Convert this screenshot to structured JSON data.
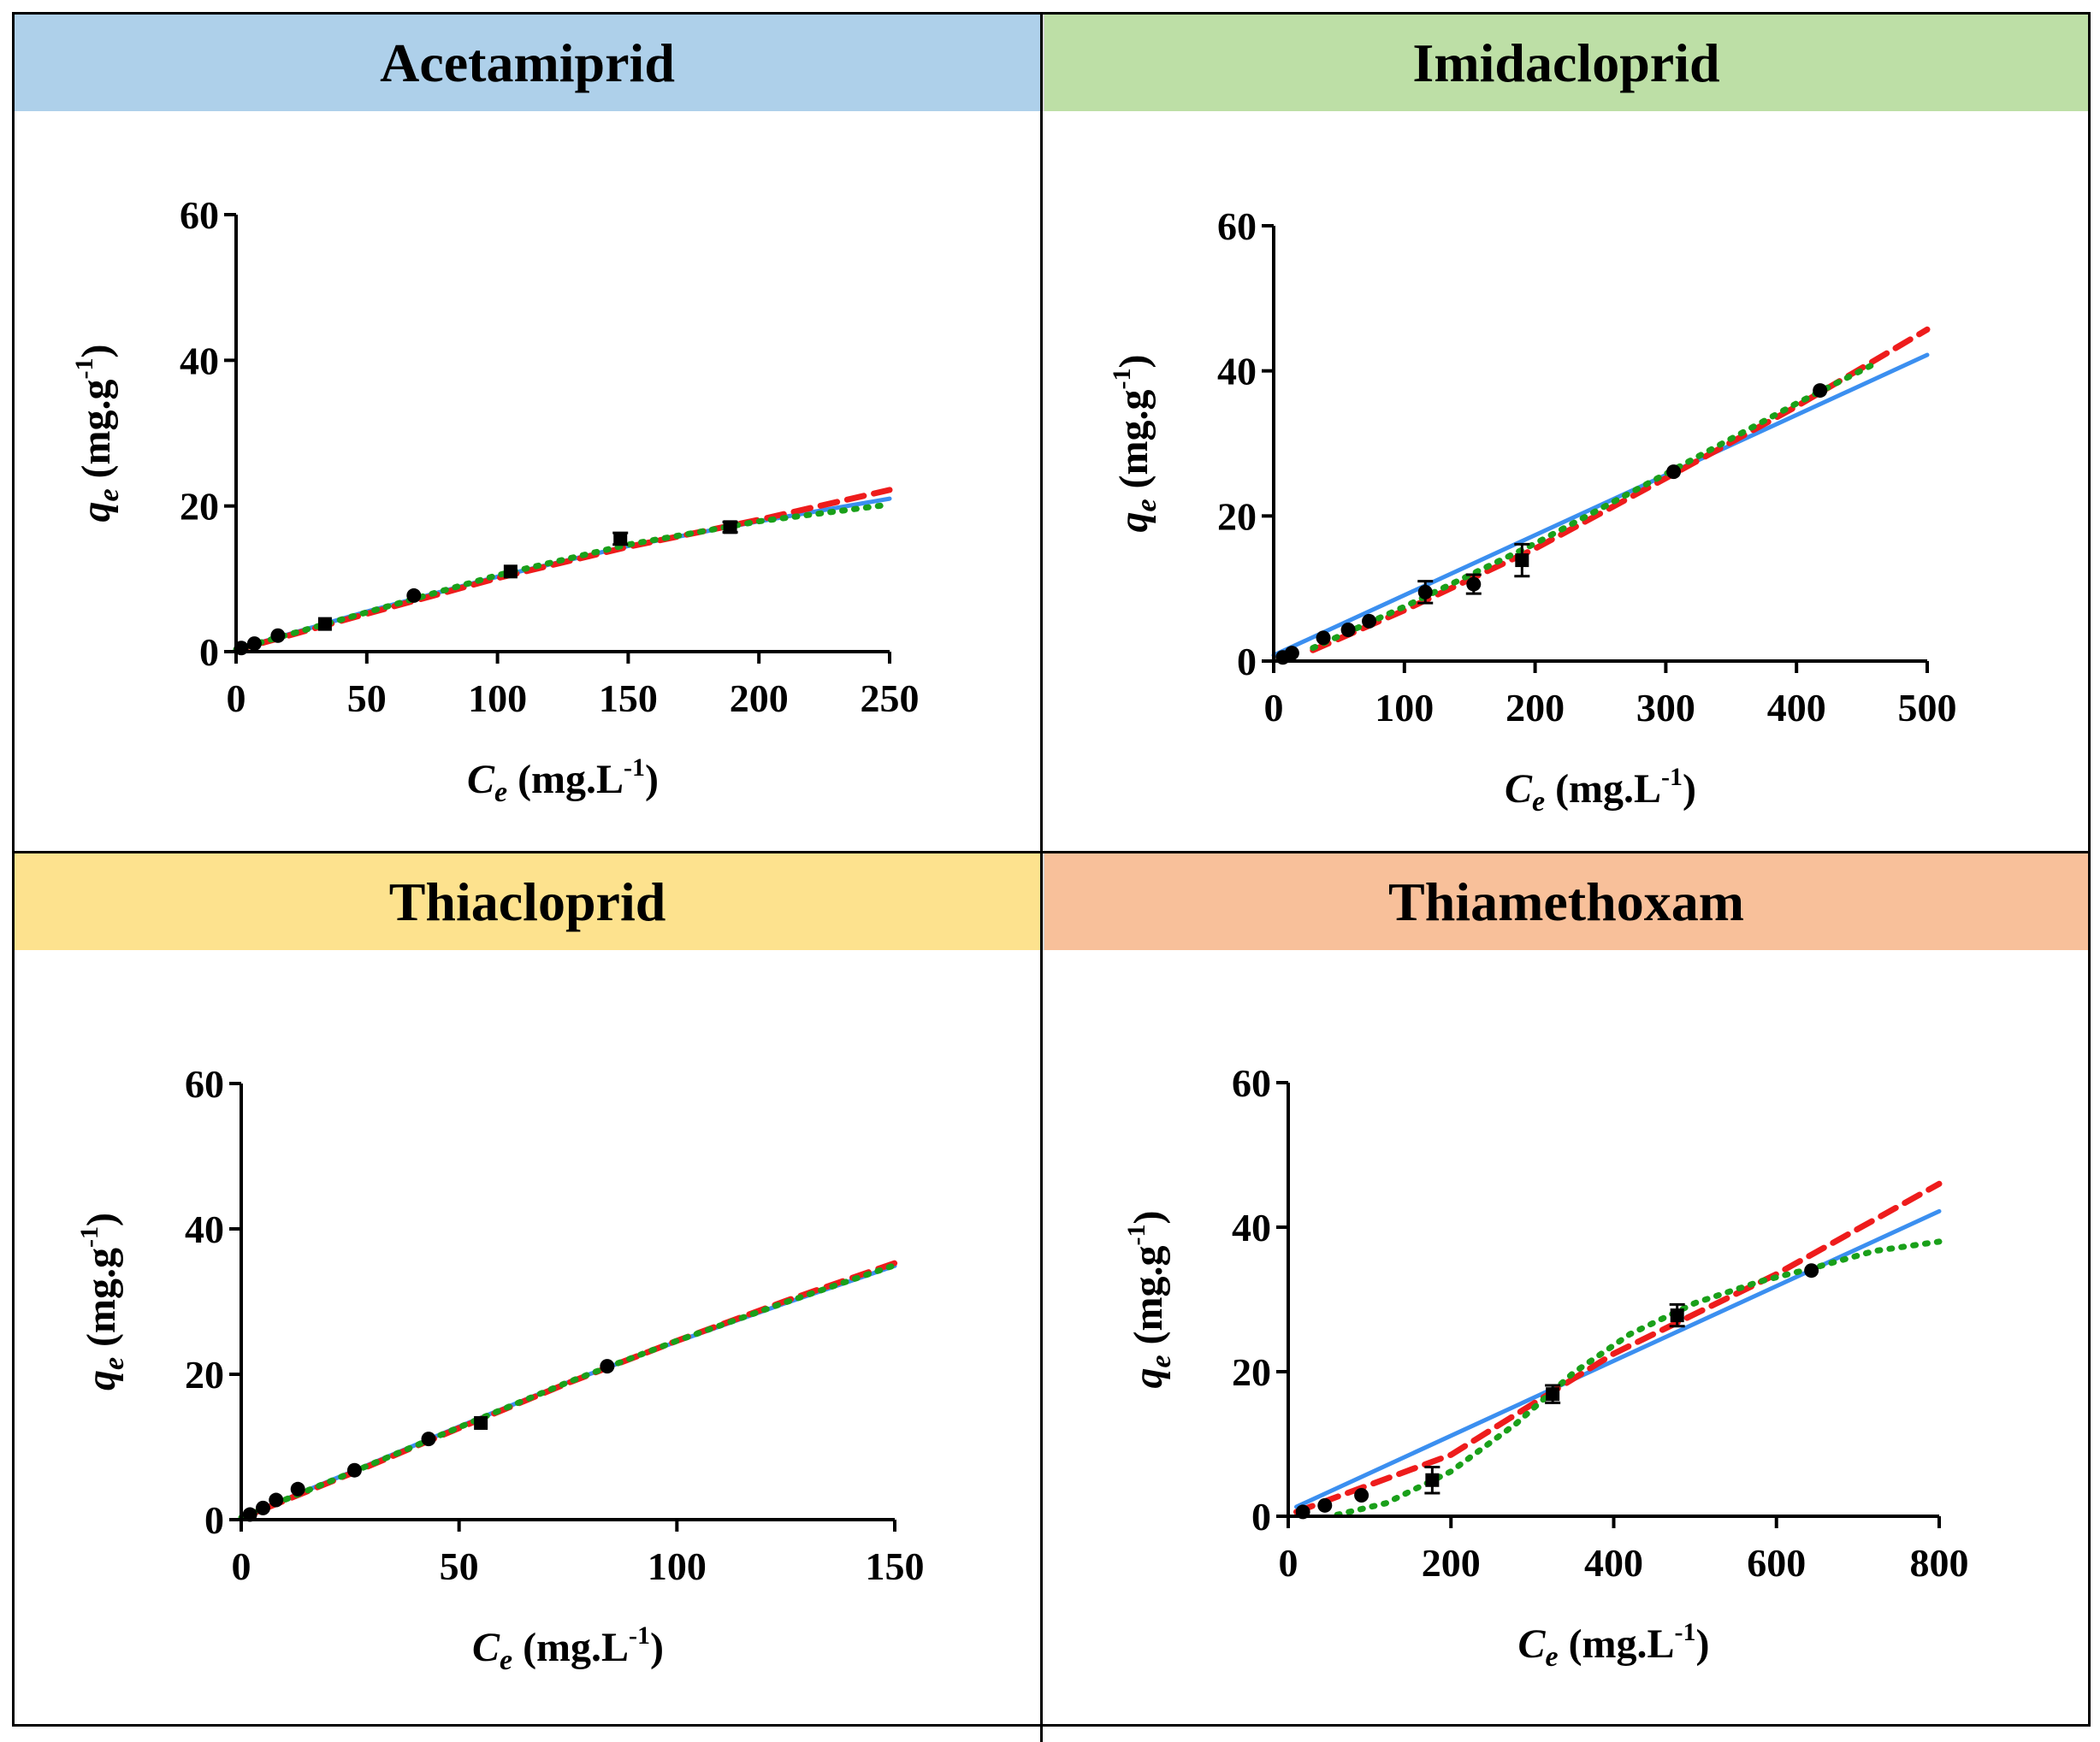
{
  "panels": [
    {
      "title": "Acetamiprid",
      "header_color": "#aed0ea"
    },
    {
      "title": "Imidacloprid",
      "header_color": "#bddfa6"
    },
    {
      "title": "Thiacloprid",
      "header_color": "#fde28e"
    },
    {
      "title": "Thiamethoxam",
      "header_color": "#f8c09a"
    }
  ],
  "line_colors": {
    "solid": "#3b8ff0",
    "dashed": "#ee1c1c",
    "dotted": "#1aa01a"
  },
  "marker_color": "#000000",
  "chart_data": [
    {
      "type": "scatter",
      "title": "Acetamiprid",
      "xlabel_main": "C",
      "xlabel_sub": "e",
      "xlabel_unit": " (mg.L",
      "xlabel_exp": "-1",
      "xlabel_close": ")",
      "ylabel_main": "q",
      "ylabel_sub": "e",
      "ylabel_unit": " (mg.g",
      "ylabel_exp": "-1",
      "ylabel_close": ")",
      "xlim": [
        0,
        250
      ],
      "ylim": [
        0,
        60
      ],
      "xticks": [
        0,
        50,
        100,
        150,
        200,
        250
      ],
      "yticks": [
        0,
        20,
        40,
        60
      ],
      "points": [
        {
          "x": 2,
          "y": 0.5,
          "err": 0,
          "marker": "circle"
        },
        {
          "x": 7,
          "y": 1.1,
          "err": 0,
          "marker": "circle"
        },
        {
          "x": 16,
          "y": 2.2,
          "err": 0,
          "marker": "circle"
        },
        {
          "x": 34,
          "y": 3.8,
          "err": 0,
          "marker": "square"
        },
        {
          "x": 68,
          "y": 7.7,
          "err": 0,
          "marker": "circle"
        },
        {
          "x": 105,
          "y": 11.0,
          "err": 0,
          "marker": "square"
        },
        {
          "x": 147,
          "y": 15.5,
          "err": 0.8,
          "marker": "square"
        },
        {
          "x": 189,
          "y": 17.1,
          "err": 0.7,
          "marker": "square"
        }
      ],
      "series": [
        {
          "style": "solid",
          "x": [
            0,
            50,
            100,
            150,
            200,
            250
          ],
          "y": [
            0.3,
            5.5,
            10.3,
            14.5,
            17.9,
            21.0
          ]
        },
        {
          "style": "dashed",
          "x": [
            0,
            50,
            100,
            150,
            200,
            250
          ],
          "y": [
            0.2,
            5.2,
            10.1,
            14.4,
            18.1,
            22.2
          ]
        },
        {
          "style": "dotted",
          "x": [
            0,
            50,
            100,
            150,
            200,
            250
          ],
          "y": [
            0.3,
            5.4,
            10.5,
            14.7,
            17.9,
            20.2
          ]
        }
      ]
    },
    {
      "type": "scatter",
      "title": "Imidacloprid",
      "xlabel_main": "C",
      "xlabel_sub": "e",
      "xlabel_unit": " (mg.L",
      "xlabel_exp": "-1",
      "xlabel_close": ")",
      "ylabel_main": "q",
      "ylabel_sub": "e",
      "ylabel_unit": " (mg.g",
      "ylabel_exp": "-1",
      "ylabel_close": ")",
      "xlim": [
        0,
        500
      ],
      "ylim": [
        0,
        60
      ],
      "xticks": [
        0,
        100,
        200,
        300,
        400,
        500
      ],
      "yticks": [
        0,
        20,
        40,
        60
      ],
      "points": [
        {
          "x": 7,
          "y": 0.5,
          "err": 0,
          "marker": "circle"
        },
        {
          "x": 14,
          "y": 1.1,
          "err": 0,
          "marker": "circle"
        },
        {
          "x": 38,
          "y": 3.2,
          "err": 0,
          "marker": "circle"
        },
        {
          "x": 57,
          "y": 4.3,
          "err": 0,
          "marker": "circle"
        },
        {
          "x": 73,
          "y": 5.5,
          "err": 0,
          "marker": "circle"
        },
        {
          "x": 116,
          "y": 9.5,
          "err": 1.5,
          "marker": "circle"
        },
        {
          "x": 153,
          "y": 10.6,
          "err": 1.3,
          "marker": "circle"
        },
        {
          "x": 190,
          "y": 13.9,
          "err": 2.2,
          "marker": "square"
        },
        {
          "x": 306,
          "y": 26.1,
          "err": 0,
          "marker": "circle"
        },
        {
          "x": 418,
          "y": 37.3,
          "err": 0,
          "marker": "circle"
        }
      ],
      "series": [
        {
          "style": "solid",
          "x": [
            0,
            500
          ],
          "y": [
            0.8,
            42.2
          ]
        },
        {
          "style": "dashed",
          "x": [
            30,
            100,
            200,
            300,
            400,
            500
          ],
          "y": [
            1.5,
            7.0,
            15.5,
            25.2,
            35.1,
            45.7
          ]
        },
        {
          "style": "dotted",
          "x": [
            30,
            100,
            200,
            300,
            400,
            460
          ],
          "y": [
            1.8,
            7.5,
            16.2,
            25.8,
            35.5,
            41.0
          ]
        }
      ]
    },
    {
      "type": "scatter",
      "title": "Thiacloprid",
      "xlabel_main": "C",
      "xlabel_sub": "e",
      "xlabel_unit": " (mg.L",
      "xlabel_exp": "-1",
      "xlabel_close": ")",
      "ylabel_main": "q",
      "ylabel_sub": "e",
      "ylabel_unit": " (mg.g",
      "ylabel_exp": "-1",
      "ylabel_close": ")",
      "xlim": [
        0,
        150
      ],
      "ylim": [
        0,
        60
      ],
      "xticks": [
        0,
        50,
        100,
        150
      ],
      "yticks": [
        0,
        20,
        40,
        60
      ],
      "points": [
        {
          "x": 2,
          "y": 0.7,
          "err": 0,
          "marker": "circle"
        },
        {
          "x": 5,
          "y": 1.6,
          "err": 0,
          "marker": "circle"
        },
        {
          "x": 8,
          "y": 2.7,
          "err": 0,
          "marker": "circle"
        },
        {
          "x": 13,
          "y": 4.2,
          "err": 0,
          "marker": "circle"
        },
        {
          "x": 26,
          "y": 6.8,
          "err": 0,
          "marker": "circle"
        },
        {
          "x": 43,
          "y": 11.1,
          "err": 0,
          "marker": "circle"
        },
        {
          "x": 55,
          "y": 13.3,
          "err": 0,
          "marker": "square"
        },
        {
          "x": 84,
          "y": 21.1,
          "err": 0,
          "marker": "circle"
        }
      ],
      "series": [
        {
          "style": "solid",
          "x": [
            0,
            25,
            50,
            75,
            100,
            125,
            150
          ],
          "y": [
            0.3,
            6.5,
            12.8,
            18.9,
            24.5,
            29.8,
            34.9
          ]
        },
        {
          "style": "dashed",
          "x": [
            0,
            25,
            50,
            75,
            100,
            125,
            150
          ],
          "y": [
            0.2,
            6.3,
            12.6,
            18.8,
            24.6,
            30.1,
            35.3
          ]
        },
        {
          "style": "dotted",
          "x": [
            0,
            25,
            50,
            75,
            100,
            125,
            150
          ],
          "y": [
            0.3,
            6.4,
            12.7,
            18.9,
            24.6,
            29.9,
            35.0
          ]
        }
      ]
    },
    {
      "type": "scatter",
      "title": "Thiamethoxam",
      "xlabel_main": "C",
      "xlabel_sub": "e",
      "xlabel_unit": " (mg.L",
      "xlabel_exp": "-1",
      "xlabel_close": ")",
      "ylabel_main": "q",
      "ylabel_sub": "e",
      "ylabel_unit": " (mg.g",
      "ylabel_exp": "-1",
      "ylabel_close": ")",
      "xlim": [
        0,
        800
      ],
      "ylim": [
        0,
        60
      ],
      "xticks": [
        0,
        200,
        400,
        600,
        800
      ],
      "yticks": [
        0,
        20,
        40,
        60
      ],
      "points": [
        {
          "x": 18,
          "y": 0.6,
          "err": 0,
          "marker": "circle"
        },
        {
          "x": 45,
          "y": 1.5,
          "err": 0,
          "marker": "circle"
        },
        {
          "x": 90,
          "y": 2.9,
          "err": 0,
          "marker": "circle"
        },
        {
          "x": 177,
          "y": 5.0,
          "err": 1.8,
          "marker": "square"
        },
        {
          "x": 325,
          "y": 16.9,
          "err": 1.2,
          "marker": "square"
        },
        {
          "x": 478,
          "y": 27.8,
          "err": 1.5,
          "marker": "square"
        },
        {
          "x": 643,
          "y": 34.0,
          "err": 0,
          "marker": "circle"
        }
      ],
      "series": [
        {
          "style": "solid",
          "x": [
            10,
            800
          ],
          "y": [
            1.3,
            42.2
          ]
        },
        {
          "style": "dashed",
          "x": [
            10,
            200,
            400,
            600,
            800
          ],
          "y": [
            0.6,
            8.5,
            22.5,
            33.5,
            46.0
          ]
        },
        {
          "style": "dotted",
          "x": [
            60,
            120,
            200,
            280,
            350,
            420,
            500,
            580,
            650,
            720,
            800
          ],
          "y": [
            0.2,
            1.8,
            6.2,
            12.8,
            19.8,
            25.2,
            29.5,
            32.5,
            34.5,
            36.7,
            38.0
          ]
        }
      ]
    }
  ]
}
